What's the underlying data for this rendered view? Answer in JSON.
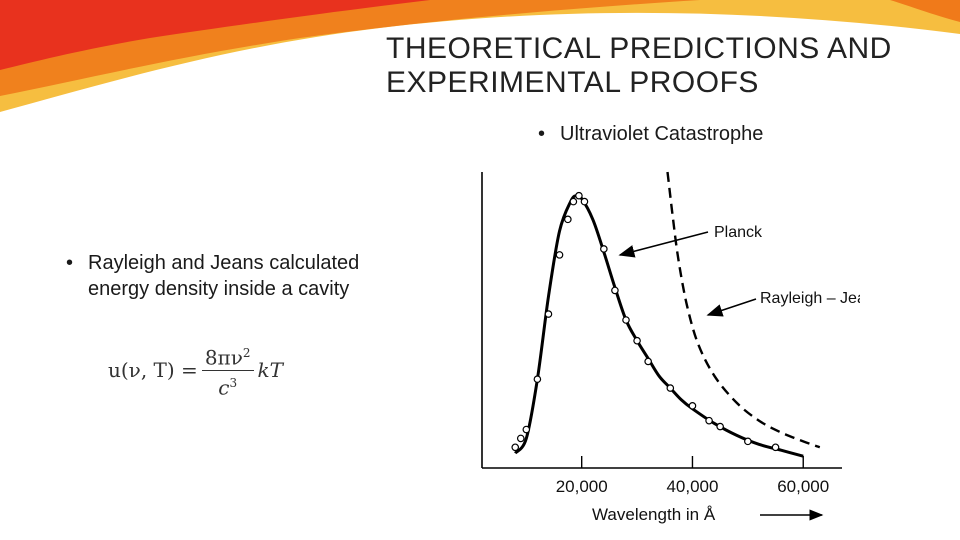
{
  "slide": {
    "title_line1": "THEORETICAL PREDICTIONS AND",
    "title_line2": "EXPERIMENTAL PROOFS",
    "bullet_uv": "Ultraviolet Catastrophe",
    "bullet_rj": "Rayleigh and Jeans calculated energy density inside a cavity",
    "formula": {
      "lhs": "u(ν, T) =",
      "numerator": "8πν",
      "numerator_exp": "2",
      "denominator": "c",
      "denominator_exp": "3",
      "rhs": "kT"
    },
    "banner_colors": [
      "#e8321e",
      "#f07a1a",
      "#f5b31e"
    ]
  },
  "chart_data": {
    "type": "line",
    "xlabel": "Wavelength  in  Å",
    "ylabel": "",
    "xlim": [
      2000,
      67000
    ],
    "ylim": [
      0,
      1
    ],
    "x_ticks": [
      20000,
      40000,
      60000
    ],
    "x_tick_labels": [
      "20,000",
      "40,000",
      "60,000"
    ],
    "grid": false,
    "series": [
      {
        "name": "Planck",
        "style": "solid",
        "color": "#000000",
        "x": [
          8000,
          10000,
          12000,
          14000,
          16000,
          18000,
          19000,
          20000,
          22000,
          24000,
          26000,
          28000,
          30000,
          32000,
          34000,
          36000,
          38000,
          40000,
          44000,
          48000,
          52000,
          56000,
          60000
        ],
        "y": [
          0.05,
          0.1,
          0.3,
          0.58,
          0.8,
          0.9,
          0.92,
          0.91,
          0.84,
          0.73,
          0.61,
          0.5,
          0.43,
          0.37,
          0.31,
          0.27,
          0.23,
          0.2,
          0.15,
          0.11,
          0.08,
          0.06,
          0.04
        ]
      },
      {
        "name": "Rayleigh – Jeans",
        "style": "dashed",
        "color": "#000000",
        "x": [
          35500,
          36500,
          37500,
          39000,
          41000,
          44000,
          48000,
          52000,
          56000,
          60000,
          63000
        ],
        "y": [
          1.0,
          0.84,
          0.7,
          0.55,
          0.42,
          0.31,
          0.22,
          0.16,
          0.12,
          0.09,
          0.07
        ]
      },
      {
        "name": "",
        "style": "markers",
        "color": "#000000",
        "x": [
          8000,
          9000,
          10000,
          12000,
          14000,
          16000,
          17500,
          18500,
          19500,
          20500,
          24000,
          26000,
          28000,
          30000,
          32000,
          36000,
          40000,
          43000,
          45000,
          50000,
          55000
        ],
        "y": [
          0.07,
          0.1,
          0.13,
          0.3,
          0.52,
          0.72,
          0.84,
          0.9,
          0.92,
          0.9,
          0.74,
          0.6,
          0.5,
          0.43,
          0.36,
          0.27,
          0.21,
          0.16,
          0.14,
          0.09,
          0.07
        ]
      }
    ],
    "annotations": [
      {
        "text": "Planck",
        "target_series": "Planck"
      },
      {
        "text": "Rayleigh – Jeans",
        "target_series": "Rayleigh – Jeans"
      }
    ]
  }
}
